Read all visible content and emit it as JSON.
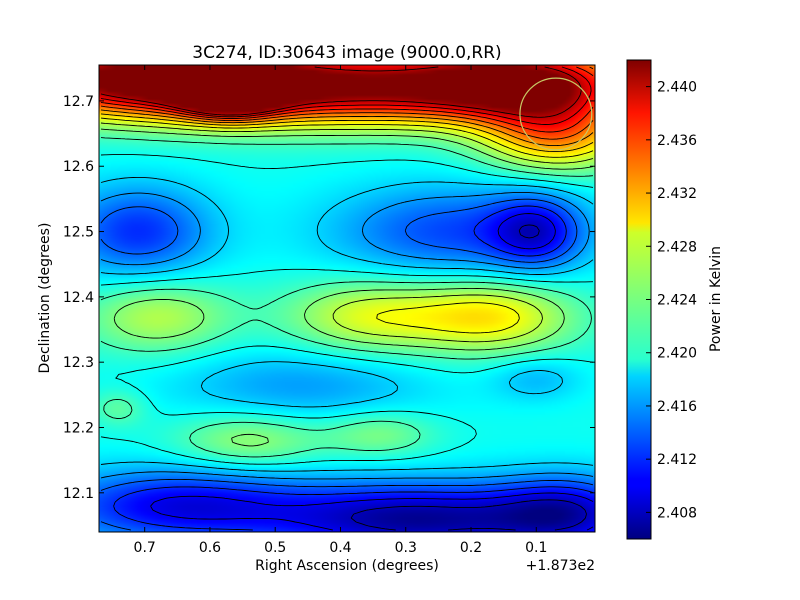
{
  "chart_data": {
    "type": "heatmap",
    "title": "3C274, ID:30643 image (9000.0,RR)",
    "xlabel": "Right Ascension (degrees)",
    "ylabel": "Declination (degrees)",
    "x_offset_label": "+1.873e2",
    "xlim": [
      0.77,
      0.01
    ],
    "ylim": [
      12.04,
      12.755
    ],
    "x_ticks": [
      0.7,
      0.6,
      0.5,
      0.4,
      0.3,
      0.2,
      0.1
    ],
    "x_tick_labels": [
      "0.7",
      "0.6",
      "0.5",
      "0.4",
      "0.3",
      "0.2",
      "0.1"
    ],
    "y_ticks": [
      12.1,
      12.2,
      12.3,
      12.4,
      12.5,
      12.6,
      12.7
    ],
    "y_tick_labels": [
      "12.1",
      "12.2",
      "12.3",
      "12.4",
      "12.5",
      "12.6",
      "12.7"
    ],
    "colorbar": {
      "label": "Power in Kelvin",
      "range": [
        2.406,
        2.442
      ],
      "ticks": [
        2.408,
        2.412,
        2.416,
        2.42,
        2.424,
        2.428,
        2.432,
        2.436,
        2.44
      ],
      "tick_labels": [
        "2.408",
        "2.412",
        "2.416",
        "2.420",
        "2.424",
        "2.428",
        "2.432",
        "2.436",
        "2.440"
      ],
      "colormap": "jet"
    },
    "base_value": 2.42,
    "features": [
      {
        "ra": 0.7,
        "dec": 12.735,
        "value": 2.441,
        "sx": 0.18,
        "sy": 0.04
      },
      {
        "ra": 0.57,
        "dec": 12.715,
        "value": 2.44,
        "sx": 0.05,
        "sy": 0.025
      },
      {
        "ra": 0.38,
        "dec": 12.72,
        "value": 2.438,
        "sx": 0.22,
        "sy": 0.04
      },
      {
        "ra": 0.12,
        "dec": 12.73,
        "value": 2.437,
        "sx": 0.12,
        "sy": 0.04
      },
      {
        "ra": 0.07,
        "dec": 12.65,
        "value": 2.432,
        "sx": 0.08,
        "sy": 0.04
      },
      {
        "ra": 0.71,
        "dec": 12.5,
        "value": 2.412,
        "sx": 0.08,
        "sy": 0.05
      },
      {
        "ra": 0.23,
        "dec": 12.5,
        "value": 2.413,
        "sx": 0.13,
        "sy": 0.05
      },
      {
        "ra": 0.1,
        "dec": 12.5,
        "value": 2.412,
        "sx": 0.05,
        "sy": 0.04
      },
      {
        "ra": 0.68,
        "dec": 12.37,
        "value": 2.426,
        "sx": 0.08,
        "sy": 0.04
      },
      {
        "ra": 0.36,
        "dec": 12.37,
        "value": 2.427,
        "sx": 0.09,
        "sy": 0.04
      },
      {
        "ra": 0.17,
        "dec": 12.37,
        "value": 2.429,
        "sx": 0.09,
        "sy": 0.04
      },
      {
        "ra": 0.46,
        "dec": 12.265,
        "value": 2.416,
        "sx": 0.14,
        "sy": 0.04
      },
      {
        "ra": 0.1,
        "dec": 12.275,
        "value": 2.417,
        "sx": 0.05,
        "sy": 0.025
      },
      {
        "ra": 0.54,
        "dec": 12.18,
        "value": 2.425,
        "sx": 0.08,
        "sy": 0.03
      },
      {
        "ra": 0.34,
        "dec": 12.19,
        "value": 2.424,
        "sx": 0.06,
        "sy": 0.025
      },
      {
        "ra": 0.74,
        "dec": 12.23,
        "value": 2.423,
        "sx": 0.03,
        "sy": 0.02
      },
      {
        "ra": 0.65,
        "dec": 12.08,
        "value": 2.41,
        "sx": 0.14,
        "sy": 0.04
      },
      {
        "ra": 0.28,
        "dec": 12.06,
        "value": 2.407,
        "sx": 0.16,
        "sy": 0.04
      },
      {
        "ra": 0.05,
        "dec": 12.07,
        "value": 2.411,
        "sx": 0.08,
        "sy": 0.04
      }
    ],
    "marker_circle": {
      "ra": 0.07,
      "dec": 12.68,
      "radius_deg": 0.055,
      "color": "#c8c864"
    }
  }
}
